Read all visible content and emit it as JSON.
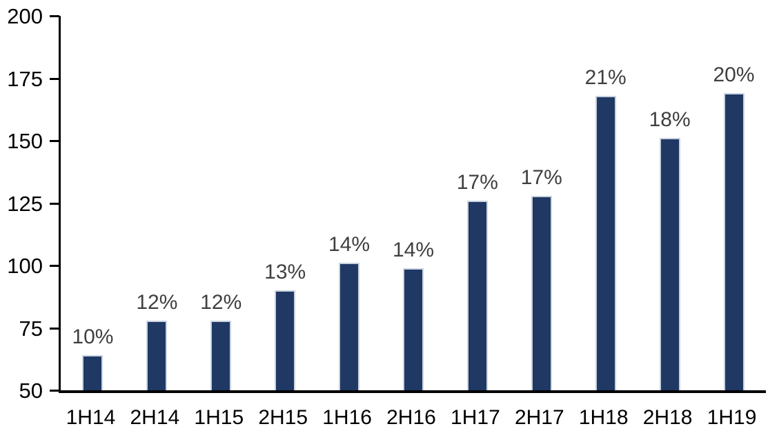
{
  "chart_data": {
    "type": "bar",
    "title": "",
    "xlabel": "",
    "ylabel": "",
    "categories": [
      "1H14",
      "2H14",
      "1H15",
      "2H15",
      "1H16",
      "2H16",
      "1H17",
      "2H17",
      "1H18",
      "2H18",
      "1H19"
    ],
    "values": [
      64,
      78,
      78,
      90,
      101,
      99,
      126,
      128,
      168,
      151,
      169
    ],
    "bar_labels": [
      "10%",
      "12%",
      "12%",
      "13%",
      "14%",
      "14%",
      "17%",
      "17%",
      "21%",
      "18%",
      "20%"
    ],
    "ylim": [
      50,
      200
    ],
    "yticks": [
      50,
      75,
      100,
      125,
      150,
      175,
      200
    ],
    "grid": false,
    "legend": "none",
    "colors": {
      "bar_fill": "#1f3864",
      "bar_border": "#c9d3de",
      "data_label": "#3f3f3f",
      "axis_line": "#000000",
      "axis_text": "#000000",
      "background": "#ffffff"
    }
  }
}
